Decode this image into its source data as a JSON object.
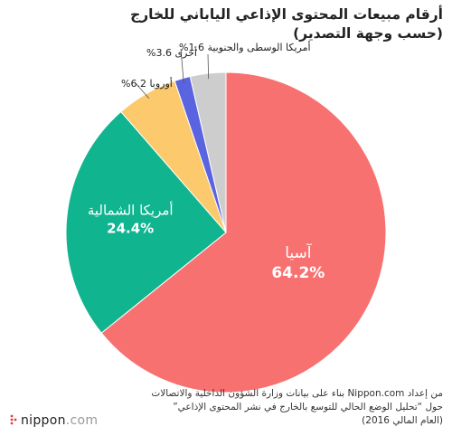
{
  "title": {
    "line1": "أرقام مبيعات المحتوى الإذاعي الياباني للخارج",
    "line2": "(حسب وجهة التصدير)"
  },
  "source": {
    "line1": "من إعداد Nippon.com بناء على بيانات وزارة الشؤون الداخلية والاتصالات",
    "line2": "حول “تحليل الوضع الحالي للتوسع بالخارج في نشر المحتوى الإذاعي”",
    "line3": "(العام المالي 2016)"
  },
  "logo": {
    "name": "nippon",
    "suffix": ".com"
  },
  "chart_data": {
    "type": "pie",
    "unit": "%",
    "slices": [
      {
        "label": "آسيا",
        "value": 64.2,
        "value_label": "64.2%",
        "color": "#f87171",
        "label_position": "inside"
      },
      {
        "label": "أمريكا الشمالية",
        "value": 24.4,
        "value_label": "24.4%",
        "color": "#10b48f",
        "label_position": "inside"
      },
      {
        "label": "أوروبا",
        "value": 6.2,
        "value_label": "6.2%",
        "color": "#fcc96d",
        "label_position": "outside"
      },
      {
        "label": "أمريكا الوسطى والجنوبية",
        "value": 1.6,
        "value_label": "1.6%",
        "color": "#5a63e0",
        "label_position": "outside"
      },
      {
        "label": "أخرى",
        "value": 3.6,
        "value_label": "3.6%",
        "color": "#cdcdcd",
        "label_position": "outside"
      }
    ]
  }
}
